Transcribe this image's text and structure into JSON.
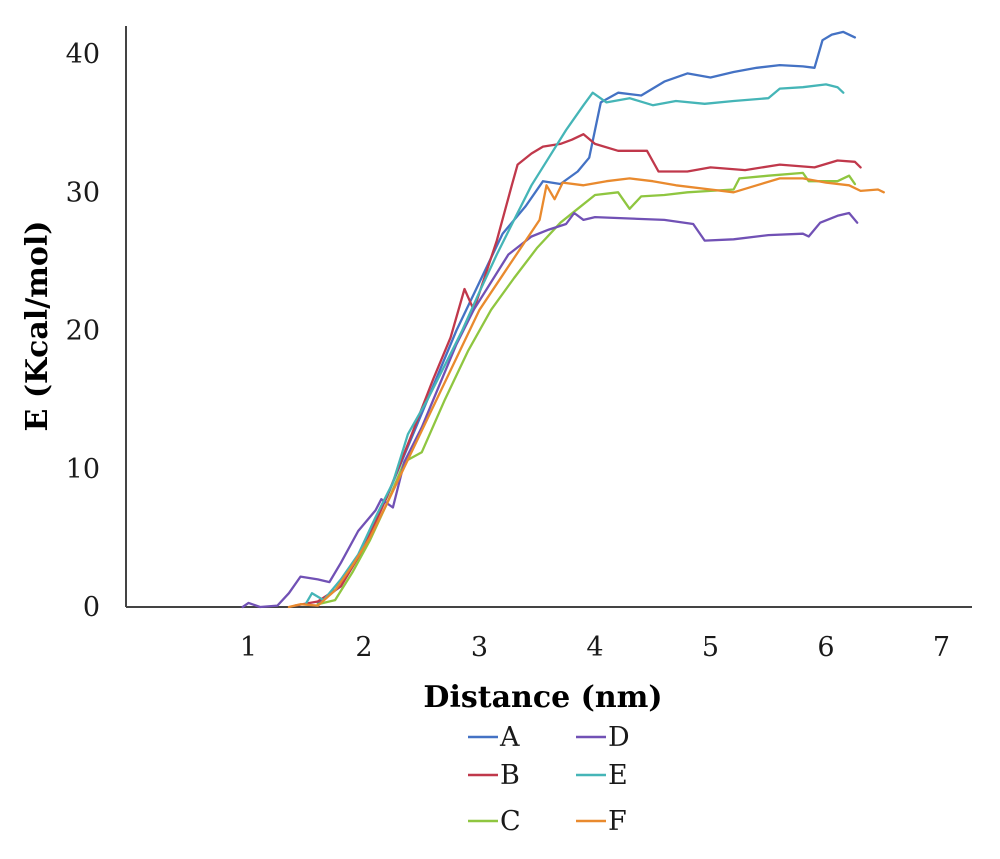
{
  "chart_data": {
    "type": "line",
    "title": "",
    "xlabel": "Distance (nm)",
    "ylabel": "E (Kcal/mol)",
    "xlim": [
      0,
      7
    ],
    "ylim": [
      0,
      42
    ],
    "xticks": [
      1,
      2,
      3,
      4,
      5,
      6,
      7
    ],
    "yticks": [
      0,
      10,
      20,
      30,
      40
    ],
    "grid": false,
    "legend": "bottom",
    "series": [
      {
        "name": "A",
        "color": "#4472C4",
        "points": [
          [
            1.6,
            0.3
          ],
          [
            1.8,
            1.5
          ],
          [
            2.0,
            4.5
          ],
          [
            2.2,
            8.0
          ],
          [
            2.4,
            12.0
          ],
          [
            2.6,
            16.0
          ],
          [
            2.8,
            20.0
          ],
          [
            3.0,
            23.5
          ],
          [
            3.2,
            27.0
          ],
          [
            3.4,
            29.0
          ],
          [
            3.55,
            30.8
          ],
          [
            3.7,
            30.6
          ],
          [
            3.85,
            31.5
          ],
          [
            3.95,
            32.5
          ],
          [
            4.05,
            36.5
          ],
          [
            4.2,
            37.2
          ],
          [
            4.4,
            37.0
          ],
          [
            4.6,
            38.0
          ],
          [
            4.8,
            38.6
          ],
          [
            5.0,
            38.3
          ],
          [
            5.2,
            38.7
          ],
          [
            5.4,
            39.0
          ],
          [
            5.6,
            39.2
          ],
          [
            5.8,
            39.1
          ],
          [
            5.9,
            39.0
          ],
          [
            5.97,
            41.0
          ],
          [
            6.05,
            41.4
          ],
          [
            6.15,
            41.6
          ],
          [
            6.25,
            41.2
          ]
        ]
      },
      {
        "name": "B",
        "color": "#C0384B",
        "points": [
          [
            1.4,
            0.1
          ],
          [
            1.6,
            0.4
          ],
          [
            1.8,
            1.5
          ],
          [
            2.0,
            4.3
          ],
          [
            2.2,
            8.0
          ],
          [
            2.4,
            12.2
          ],
          [
            2.6,
            16.5
          ],
          [
            2.75,
            19.5
          ],
          [
            2.87,
            23.0
          ],
          [
            2.95,
            21.5
          ],
          [
            3.05,
            24.0
          ],
          [
            3.15,
            26.5
          ],
          [
            3.28,
            30.5
          ],
          [
            3.33,
            32.0
          ],
          [
            3.45,
            32.8
          ],
          [
            3.55,
            33.3
          ],
          [
            3.7,
            33.5
          ],
          [
            3.8,
            33.8
          ],
          [
            3.9,
            34.2
          ],
          [
            4.0,
            33.5
          ],
          [
            4.2,
            33.0
          ],
          [
            4.45,
            33.0
          ],
          [
            4.55,
            31.5
          ],
          [
            4.8,
            31.5
          ],
          [
            5.0,
            31.8
          ],
          [
            5.3,
            31.6
          ],
          [
            5.6,
            32.0
          ],
          [
            5.9,
            31.8
          ],
          [
            6.1,
            32.3
          ],
          [
            6.25,
            32.2
          ],
          [
            6.3,
            31.8
          ]
        ]
      },
      {
        "name": "C",
        "color": "#8FC640",
        "points": [
          [
            1.6,
            0.2
          ],
          [
            1.75,
            0.5
          ],
          [
            1.9,
            2.5
          ],
          [
            2.05,
            4.8
          ],
          [
            2.2,
            7.5
          ],
          [
            2.35,
            10.5
          ],
          [
            2.5,
            11.2
          ],
          [
            2.7,
            15.0
          ],
          [
            2.9,
            18.5
          ],
          [
            3.1,
            21.5
          ],
          [
            3.3,
            23.8
          ],
          [
            3.5,
            26.0
          ],
          [
            3.7,
            27.8
          ],
          [
            3.85,
            28.8
          ],
          [
            4.0,
            29.8
          ],
          [
            4.2,
            30.0
          ],
          [
            4.3,
            28.8
          ],
          [
            4.4,
            29.7
          ],
          [
            4.6,
            29.8
          ],
          [
            4.8,
            30.0
          ],
          [
            5.0,
            30.1
          ],
          [
            5.2,
            30.2
          ],
          [
            5.25,
            31.0
          ],
          [
            5.5,
            31.2
          ],
          [
            5.8,
            31.4
          ],
          [
            5.85,
            30.8
          ],
          [
            6.1,
            30.8
          ],
          [
            6.2,
            31.2
          ],
          [
            6.25,
            30.6
          ]
        ]
      },
      {
        "name": "D",
        "color": "#7151B5",
        "points": [
          [
            0.95,
            0.0
          ],
          [
            1.0,
            0.3
          ],
          [
            1.1,
            0.0
          ],
          [
            1.25,
            0.1
          ],
          [
            1.35,
            1.0
          ],
          [
            1.45,
            2.2
          ],
          [
            1.6,
            2.0
          ],
          [
            1.7,
            1.8
          ],
          [
            1.8,
            3.2
          ],
          [
            1.95,
            5.5
          ],
          [
            2.1,
            7.0
          ],
          [
            2.15,
            7.8
          ],
          [
            2.25,
            7.2
          ],
          [
            2.35,
            10.5
          ],
          [
            2.5,
            13.0
          ],
          [
            2.65,
            16.0
          ],
          [
            2.8,
            19.0
          ],
          [
            2.95,
            21.5
          ],
          [
            3.1,
            23.5
          ],
          [
            3.25,
            25.5
          ],
          [
            3.45,
            26.8
          ],
          [
            3.6,
            27.3
          ],
          [
            3.75,
            27.7
          ],
          [
            3.82,
            28.5
          ],
          [
            3.9,
            28.0
          ],
          [
            4.0,
            28.2
          ],
          [
            4.3,
            28.1
          ],
          [
            4.6,
            28.0
          ],
          [
            4.85,
            27.7
          ],
          [
            4.95,
            26.5
          ],
          [
            5.2,
            26.6
          ],
          [
            5.5,
            26.9
          ],
          [
            5.8,
            27.0
          ],
          [
            5.85,
            26.8
          ],
          [
            5.95,
            27.8
          ],
          [
            6.1,
            28.3
          ],
          [
            6.2,
            28.5
          ],
          [
            6.27,
            27.8
          ]
        ]
      },
      {
        "name": "E",
        "color": "#45B5B7",
        "points": [
          [
            1.5,
            0.3
          ],
          [
            1.55,
            1.0
          ],
          [
            1.65,
            0.5
          ],
          [
            1.8,
            2.0
          ],
          [
            1.95,
            3.8
          ],
          [
            2.1,
            6.5
          ],
          [
            2.25,
            9.0
          ],
          [
            2.38,
            12.5
          ],
          [
            2.55,
            15.0
          ],
          [
            2.7,
            17.5
          ],
          [
            2.85,
            20.0
          ],
          [
            3.0,
            22.8
          ],
          [
            3.15,
            25.5
          ],
          [
            3.3,
            28.0
          ],
          [
            3.45,
            30.5
          ],
          [
            3.6,
            32.5
          ],
          [
            3.75,
            34.5
          ],
          [
            3.9,
            36.3
          ],
          [
            3.98,
            37.2
          ],
          [
            4.1,
            36.5
          ],
          [
            4.3,
            36.8
          ],
          [
            4.5,
            36.3
          ],
          [
            4.7,
            36.6
          ],
          [
            4.95,
            36.4
          ],
          [
            5.2,
            36.6
          ],
          [
            5.5,
            36.8
          ],
          [
            5.6,
            37.5
          ],
          [
            5.8,
            37.6
          ],
          [
            6.0,
            37.8
          ],
          [
            6.1,
            37.6
          ],
          [
            6.15,
            37.2
          ]
        ]
      },
      {
        "name": "F",
        "color": "#E98A2E",
        "points": [
          [
            1.35,
            0.0
          ],
          [
            1.45,
            0.2
          ],
          [
            1.6,
            0.1
          ],
          [
            1.75,
            1.2
          ],
          [
            1.9,
            3.0
          ],
          [
            2.05,
            5.0
          ],
          [
            2.2,
            7.5
          ],
          [
            2.4,
            11.0
          ],
          [
            2.6,
            14.5
          ],
          [
            2.8,
            18.0
          ],
          [
            3.0,
            21.5
          ],
          [
            3.2,
            24.0
          ],
          [
            3.4,
            26.5
          ],
          [
            3.52,
            28.0
          ],
          [
            3.58,
            30.5
          ],
          [
            3.65,
            29.5
          ],
          [
            3.72,
            30.7
          ],
          [
            3.9,
            30.5
          ],
          [
            4.1,
            30.8
          ],
          [
            4.3,
            31.0
          ],
          [
            4.5,
            30.8
          ],
          [
            4.7,
            30.5
          ],
          [
            5.0,
            30.2
          ],
          [
            5.2,
            30.0
          ],
          [
            5.4,
            30.5
          ],
          [
            5.6,
            31.0
          ],
          [
            5.8,
            31.0
          ],
          [
            6.0,
            30.7
          ],
          [
            6.2,
            30.5
          ],
          [
            6.3,
            30.1
          ],
          [
            6.45,
            30.2
          ],
          [
            6.5,
            30.0
          ]
        ]
      }
    ]
  }
}
